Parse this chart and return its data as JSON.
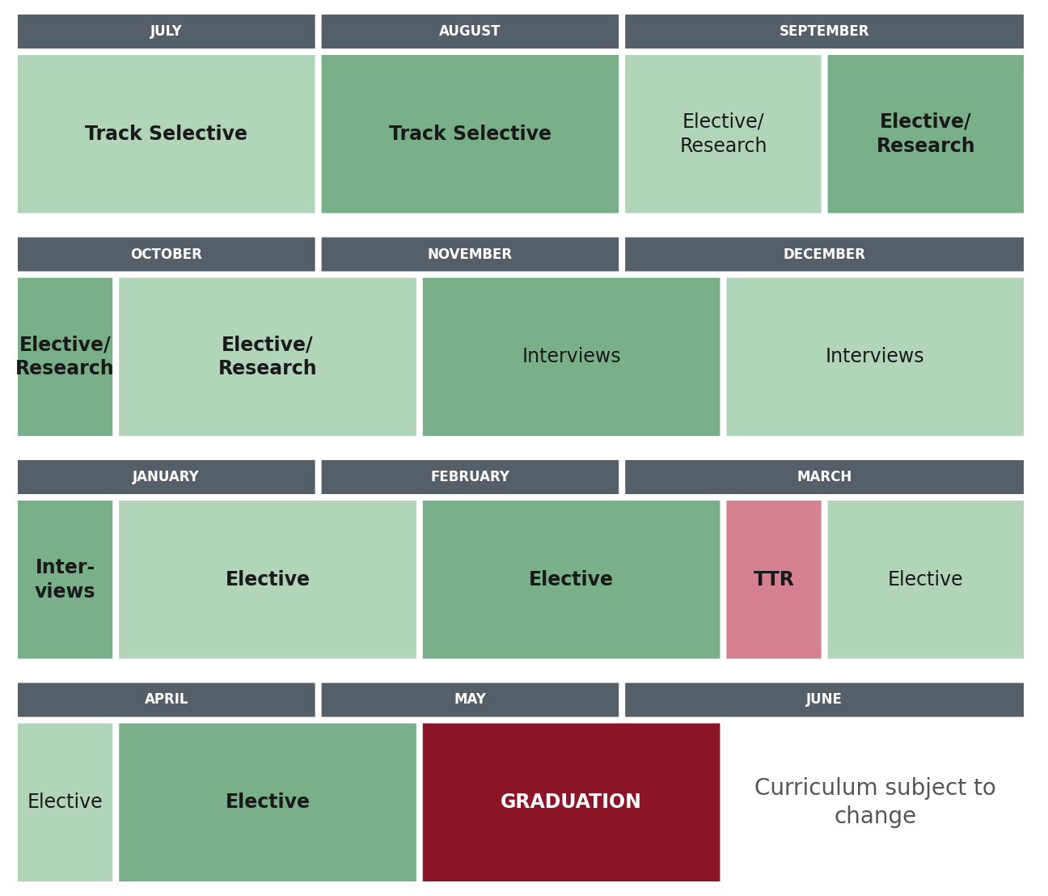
{
  "bg_color": "#ffffff",
  "header_color": "#555f67",
  "header_text_color": "#ffffff",
  "header_fontsize": 12,
  "block_text_color": "#1a1a1a",
  "block_fontsize": 17,
  "rows": [
    {
      "months": [
        {
          "label": "JULY",
          "col": 0,
          "span": 3
        },
        {
          "label": "AUGUST",
          "col": 3,
          "span": 3
        },
        {
          "label": "SEPTEMBER",
          "col": 6,
          "span": 4
        }
      ],
      "blocks": [
        {
          "label": "Track Selective",
          "color": "#b2d4b8",
          "col": 0,
          "span": 3,
          "bold": true
        },
        {
          "label": "Track Selective",
          "color": "#7ab089",
          "col": 3,
          "span": 3,
          "bold": true
        },
        {
          "label": "Elective/\nResearch",
          "color": "#b2d4b8",
          "col": 6,
          "span": 2,
          "bold": false
        },
        {
          "label": "Elective/\nResearch",
          "color": "#7ab089",
          "col": 8,
          "span": 2,
          "bold": true
        }
      ],
      "total_cols": 10
    },
    {
      "months": [
        {
          "label": "OCTOBER",
          "col": 0,
          "span": 3
        },
        {
          "label": "NOVEMBER",
          "col": 3,
          "span": 3
        },
        {
          "label": "DECEMBER",
          "col": 6,
          "span": 4
        }
      ],
      "blocks": [
        {
          "label": "Elective/\nResearch",
          "color": "#7ab089",
          "col": 0,
          "span": 1,
          "bold": true
        },
        {
          "label": "Elective/\nResearch",
          "color": "#b2d4b8",
          "col": 1,
          "span": 3,
          "bold": true
        },
        {
          "label": "Interviews",
          "color": "#7ab089",
          "col": 4,
          "span": 3,
          "bold": false
        },
        {
          "label": "Interviews",
          "color": "#b2d4b8",
          "col": 7,
          "span": 3,
          "bold": false
        }
      ],
      "total_cols": 10
    },
    {
      "months": [
        {
          "label": "JANUARY",
          "col": 0,
          "span": 3
        },
        {
          "label": "FEBRUARY",
          "col": 3,
          "span": 3
        },
        {
          "label": "MARCH",
          "col": 6,
          "span": 4
        }
      ],
      "blocks": [
        {
          "label": "Inter-\nviews",
          "color": "#7ab089",
          "col": 0,
          "span": 1,
          "bold": true
        },
        {
          "label": "Elective",
          "color": "#b2d4b8",
          "col": 1,
          "span": 3,
          "bold": true
        },
        {
          "label": "Elective",
          "color": "#7ab089",
          "col": 4,
          "span": 3,
          "bold": true
        },
        {
          "label": "TTR",
          "color": "#d48090",
          "col": 7,
          "span": 1,
          "bold": true
        },
        {
          "label": "Elective",
          "color": "#b2d4b8",
          "col": 8,
          "span": 2,
          "bold": false
        }
      ],
      "total_cols": 10
    },
    {
      "months": [
        {
          "label": "APRIL",
          "col": 0,
          "span": 3
        },
        {
          "label": "MAY",
          "col": 3,
          "span": 3
        },
        {
          "label": "JUNE",
          "col": 6,
          "span": 4
        }
      ],
      "blocks": [
        {
          "label": "Elective",
          "color": "#b2d4b8",
          "col": 0,
          "span": 1,
          "bold": false
        },
        {
          "label": "Elective",
          "color": "#7ab089",
          "col": 1,
          "span": 3,
          "bold": true
        },
        {
          "label": "GRADUATION",
          "color": "#8b1525",
          "col": 4,
          "span": 3,
          "bold": true,
          "text_color": "#ffffff"
        },
        {
          "label": "Curriculum subject to\nchange",
          "color": null,
          "col": 7,
          "span": 3,
          "bold": false,
          "text_color": "#555555",
          "fontsize": 20
        }
      ],
      "total_cols": 10
    }
  ]
}
